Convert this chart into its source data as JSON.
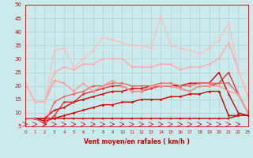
{
  "xlabel": "Vent moyen/en rafales ( km/h )",
  "xlim": [
    0,
    23
  ],
  "ylim": [
    5,
    50
  ],
  "yticks": [
    5,
    10,
    15,
    20,
    25,
    30,
    35,
    40,
    45,
    50
  ],
  "xticks": [
    0,
    1,
    2,
    3,
    4,
    5,
    6,
    7,
    8,
    9,
    10,
    11,
    12,
    13,
    14,
    15,
    16,
    17,
    18,
    19,
    20,
    21,
    22,
    23
  ],
  "background_color": "#cce9ec",
  "grid_color": "#aad4d8",
  "series": [
    {
      "y": [
        8,
        8,
        8,
        8,
        8,
        8,
        8,
        8,
        8,
        8,
        8,
        8,
        8,
        8,
        8,
        8,
        8,
        8,
        8,
        8,
        8,
        8,
        9,
        9
      ],
      "color": "#cc0000",
      "lw": 1.0,
      "marker": "s",
      "ms": 1.5
    },
    {
      "y": [
        8,
        8,
        7,
        8,
        9,
        10,
        11,
        12,
        13,
        13,
        14,
        14,
        15,
        15,
        15,
        16,
        16,
        17,
        17,
        18,
        18,
        9,
        9,
        9
      ],
      "color": "#cc0000",
      "lw": 1.0,
      "marker": "D",
      "ms": 1.5
    },
    {
      "y": [
        8,
        8,
        8,
        11,
        12,
        14,
        15,
        16,
        17,
        18,
        18,
        19,
        19,
        20,
        20,
        20,
        20,
        21,
        21,
        21,
        25,
        17,
        10,
        9
      ],
      "color": "#cc0000",
      "lw": 1.0,
      "marker": "^",
      "ms": 1.5
    },
    {
      "y": [
        8,
        8,
        6,
        9,
        14,
        14,
        17,
        18,
        19,
        20,
        20,
        18,
        18,
        19,
        20,
        20,
        19,
        18,
        20,
        20,
        21,
        25,
        17,
        10
      ],
      "color": "#dd3333",
      "lw": 1.0,
      "marker": "D",
      "ms": 1.5
    },
    {
      "y": [
        8,
        8,
        6,
        14,
        16,
        17,
        18,
        20,
        20,
        21,
        21,
        20,
        20,
        20,
        21,
        21,
        20,
        20,
        21,
        21,
        21,
        21,
        17,
        10
      ],
      "color": "#ee6666",
      "lw": 1.0,
      "marker": "D",
      "ms": 1.5
    },
    {
      "y": [
        21,
        14,
        14,
        22,
        21,
        18,
        21,
        18,
        20,
        22,
        20,
        18,
        18,
        20,
        20,
        20,
        19,
        18,
        20,
        20,
        20,
        18,
        17,
        10
      ],
      "color": "#ff9999",
      "lw": 1.0,
      "marker": "D",
      "ms": 1.5
    },
    {
      "y": [
        21,
        14,
        14,
        25,
        27,
        26,
        28,
        28,
        30,
        30,
        30,
        27,
        27,
        27,
        28,
        28,
        26,
        27,
        27,
        28,
        30,
        36,
        26,
        16
      ],
      "color": "#ffaaaa",
      "lw": 1.0,
      "marker": "D",
      "ms": 1.5
    },
    {
      "y": [
        21,
        14,
        14,
        33,
        34,
        27,
        30,
        33,
        38,
        37,
        36,
        35,
        35,
        34,
        46,
        35,
        34,
        33,
        32,
        34,
        37,
        43,
        26,
        16
      ],
      "color": "#ffbbbb",
      "lw": 0.8,
      "marker": "D",
      "ms": 1.5
    }
  ]
}
